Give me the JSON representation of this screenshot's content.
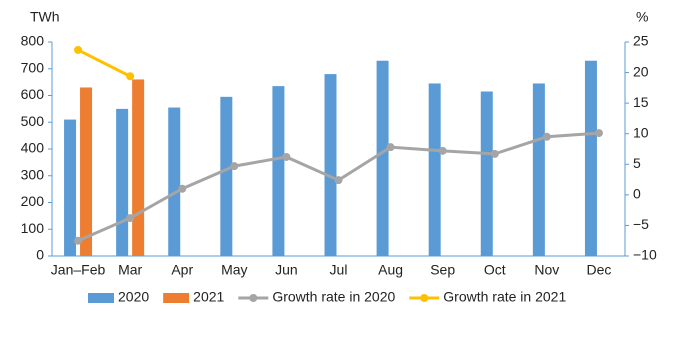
{
  "chart_data": {
    "type": "bar-line",
    "y_label": "TWh",
    "y2_label": "%",
    "categories": [
      "Jan–Feb",
      "Mar",
      "Apr",
      "May",
      "Jun",
      "Jul",
      "Aug",
      "Sep",
      "Oct",
      "Nov",
      "Dec"
    ],
    "series": [
      {
        "name": "2020",
        "type": "bar",
        "color": "#5b9bd5",
        "values": [
          510,
          550,
          555,
          595,
          635,
          680,
          730,
          645,
          615,
          645,
          730
        ]
      },
      {
        "name": "2021",
        "type": "bar",
        "color": "#ed7d31",
        "values": [
          630,
          660,
          null,
          null,
          null,
          null,
          null,
          null,
          null,
          null,
          null
        ]
      },
      {
        "name": "Growth rate in 2020",
        "type": "line",
        "axis": "y2",
        "color": "#a5a5a5",
        "values": [
          -7.5,
          -3.8,
          1.0,
          4.7,
          6.2,
          2.4,
          7.8,
          7.2,
          6.7,
          9.5,
          10.1
        ]
      },
      {
        "name": "Growth rate in 2021",
        "type": "line",
        "axis": "y2",
        "color": "#ffc000",
        "values": [
          23.7,
          19.4,
          null,
          null,
          null,
          null,
          null,
          null,
          null,
          null,
          null
        ]
      }
    ],
    "ylim": [
      0,
      800
    ],
    "yticks": [
      0,
      100,
      200,
      300,
      400,
      500,
      600,
      700,
      800
    ],
    "y2lim": [
      -10,
      25
    ],
    "y2ticks": [
      {
        "value": -10,
        "label": "−10"
      },
      {
        "value": -5,
        "label": "−5"
      },
      0,
      5,
      10,
      15,
      20,
      25
    ],
    "grid": false
  }
}
